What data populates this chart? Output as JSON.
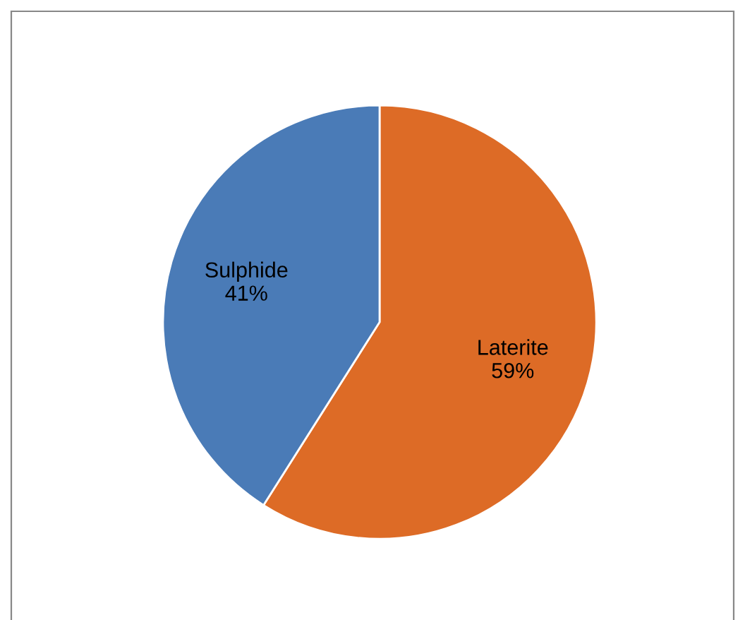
{
  "chart_data": {
    "type": "pie",
    "categories": [
      "Laterite",
      "Sulphide"
    ],
    "values": [
      59,
      41
    ],
    "colors": [
      "#dd6b26",
      "#4a7bb7"
    ],
    "value_labels": [
      "59%",
      "41%"
    ],
    "legend": false
  }
}
